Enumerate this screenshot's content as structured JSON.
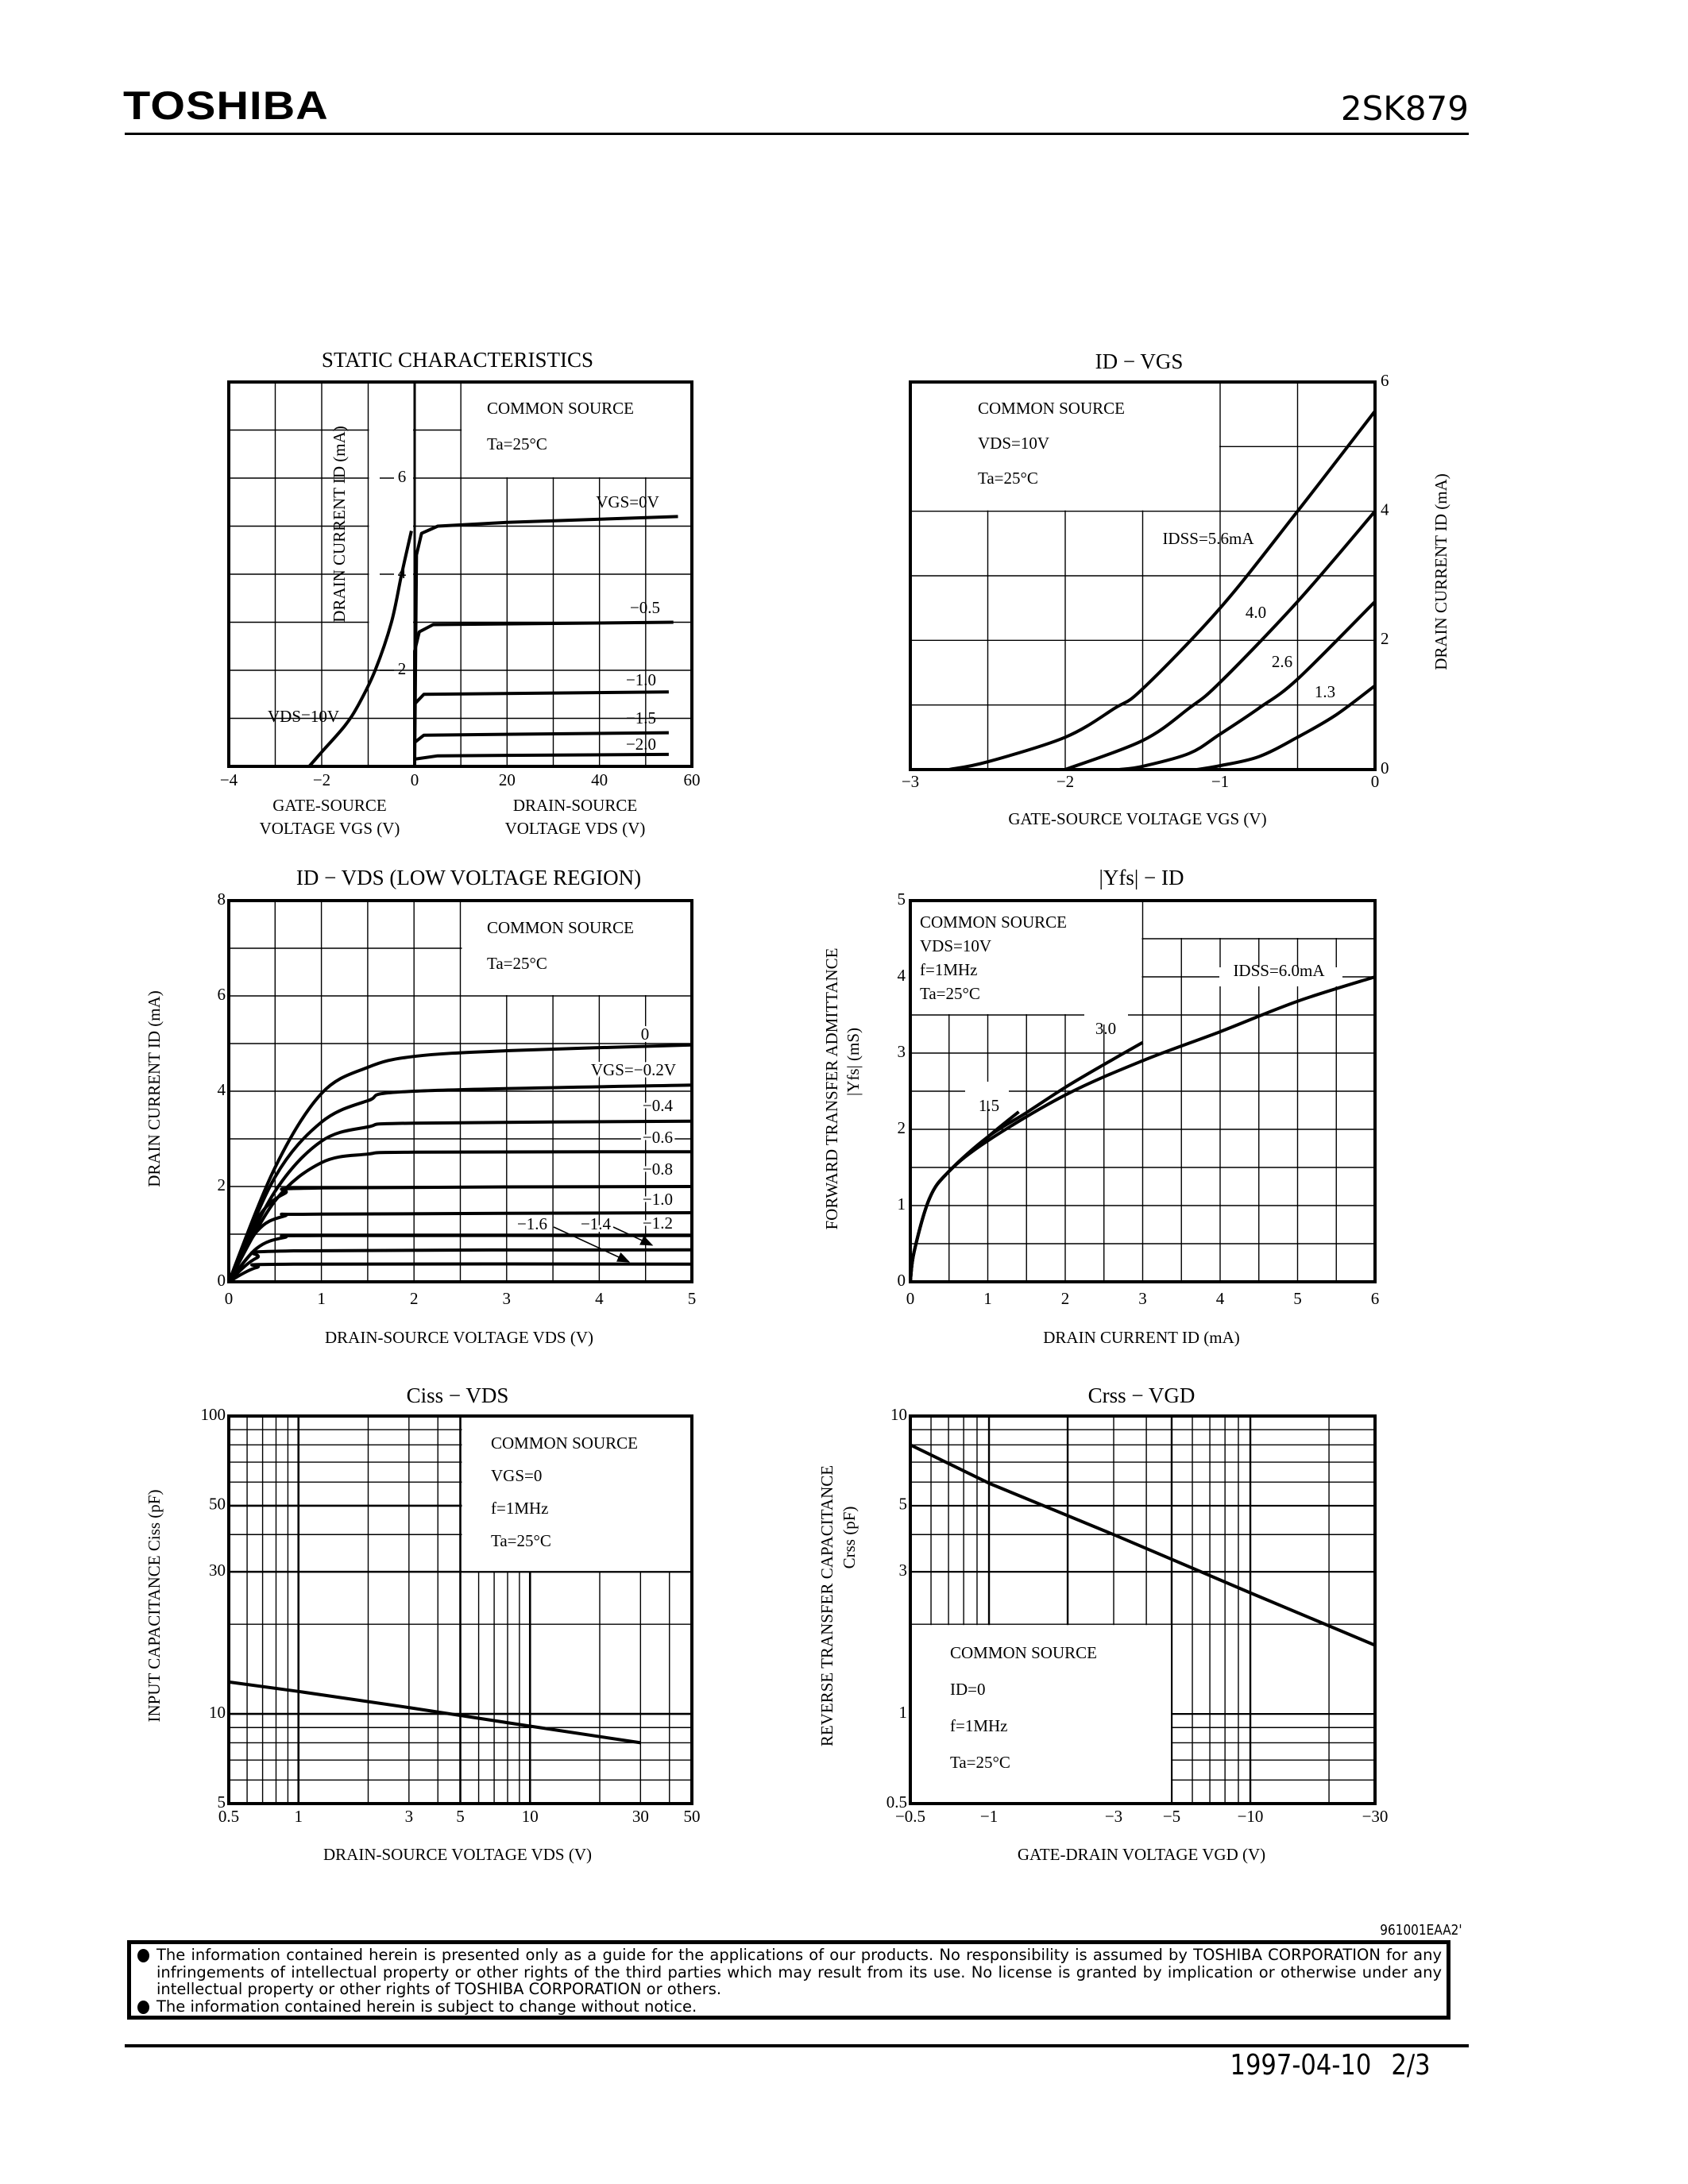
{
  "header": {
    "logo": "TOSHIBA",
    "part_number": "2SK879"
  },
  "chart_data": [
    {
      "type": "line",
      "title": "STATIC CHARACTERISTICS",
      "conditions": [
        "COMMON SOURCE",
        "Ta=25°C"
      ],
      "ylabel": "DRAIN CURRENT ID (mA)",
      "ylim": [
        0,
        8
      ],
      "yticks": [
        2,
        4,
        6
      ],
      "ytick_labels": [
        "2",
        "4",
        "6"
      ],
      "grid": true,
      "panels": [
        {
          "xlabel": [
            "GATE-SOURCE",
            "VOLTAGE VGS (V)"
          ],
          "xlim": [
            -4,
            0
          ],
          "xticks": [
            -4,
            -2,
            0
          ],
          "xtick_labels": [
            "−4",
            "−2",
            "0"
          ],
          "series": [
            {
              "name": "VDS=10V",
              "x": [
                -2.27,
                -2,
                -1.5,
                -1.2,
                -0.85,
                -0.5,
                -0.28,
                -0.07
              ],
              "y": [
                0,
                0.3,
                0.85,
                1.3,
                2.0,
                3.0,
                4.0,
                4.9
              ]
            }
          ]
        },
        {
          "xlabel": [
            "DRAIN-SOURCE",
            "VOLTAGE VDS (V)"
          ],
          "xlim": [
            0,
            60
          ],
          "xticks": [
            20,
            40,
            60
          ],
          "xtick_labels": [
            "20",
            "40",
            "60"
          ],
          "series": [
            {
              "name": "VGS=0V",
              "x": [
                0,
                0.4,
                1.5,
                5,
                20,
                57
              ],
              "y": [
                0,
                4.4,
                4.85,
                5.0,
                5.08,
                5.2
              ]
            },
            {
              "name": "−0.5",
              "x": [
                0,
                0,
                1,
                4,
                56
              ],
              "y": [
                0,
                2.4,
                2.8,
                2.95,
                3.0
              ]
            },
            {
              "name": "−1.0",
              "x": [
                0,
                0,
                2,
                55
              ],
              "y": [
                0,
                1.3,
                1.5,
                1.55
              ]
            },
            {
              "name": "−1.5",
              "x": [
                0,
                0,
                2,
                55
              ],
              "y": [
                0,
                0.5,
                0.65,
                0.7
              ]
            },
            {
              "name": "−2.0",
              "x": [
                0,
                0,
                5,
                55
              ],
              "y": [
                0,
                0.15,
                0.22,
                0.25
              ]
            }
          ]
        }
      ]
    },
    {
      "type": "line",
      "title": "ID − VGS",
      "conditions": [
        "COMMON SOURCE",
        "VDS=10V",
        "Ta=25°C"
      ],
      "xlabel": "GATE-SOURCE VOLTAGE VGS (V)",
      "ylabel": "DRAIN CURRENT ID (mA)",
      "xlim": [
        -3,
        0
      ],
      "ylim": [
        0,
        6
      ],
      "xticks": [
        -3,
        -2,
        -1,
        0
      ],
      "xtick_labels": [
        "−3",
        "−2",
        "−1",
        "0"
      ],
      "yticks": [
        0,
        2,
        4,
        6
      ],
      "ytick_labels": [
        "0",
        "2",
        "4",
        "6"
      ],
      "grid": true,
      "series": [
        {
          "name": "IDSS=5.6mA",
          "x": [
            -2.75,
            -2.5,
            -2,
            -1.68,
            -1.5,
            -1,
            -0.5,
            0
          ],
          "y": [
            0,
            0.12,
            0.5,
            0.95,
            1.25,
            2.5,
            4.0,
            5.55
          ]
        },
        {
          "name": "4.0",
          "x": [
            -2,
            -1.5,
            -1.2,
            -1,
            -0.5,
            0
          ],
          "y": [
            0,
            0.45,
            0.95,
            1.35,
            2.6,
            4.0
          ]
        },
        {
          "name": "2.6",
          "x": [
            -1.65,
            -1.5,
            -1.2,
            -1,
            -0.75,
            -0.5,
            0
          ],
          "y": [
            0,
            0.05,
            0.25,
            0.55,
            0.95,
            1.4,
            2.6
          ]
        },
        {
          "name": "1.3",
          "x": [
            -1.15,
            -1,
            -0.75,
            -0.5,
            -0.25,
            0
          ],
          "y": [
            0,
            0.06,
            0.2,
            0.5,
            0.85,
            1.3
          ]
        }
      ]
    },
    {
      "type": "line",
      "title": "ID − VDS (LOW VOLTAGE REGION)",
      "conditions": [
        "COMMON SOURCE",
        "Ta=25°C"
      ],
      "xlabel": "DRAIN-SOURCE VOLTAGE VDS (V)",
      "ylabel": "DRAIN CURRENT ID (mA)",
      "xlim": [
        0,
        5
      ],
      "ylim": [
        0,
        8
      ],
      "xticks": [
        0,
        1,
        2,
        3,
        4,
        5
      ],
      "xtick_labels": [
        "0",
        "1",
        "2",
        "3",
        "4",
        "5"
      ],
      "yticks": [
        0,
        2,
        4,
        6,
        8
      ],
      "ytick_labels": [
        "0",
        "2",
        "4",
        "6",
        "8"
      ],
      "grid": true,
      "series": [
        {
          "name": "0",
          "x": [
            0,
            0.5,
            1,
            1.5,
            2,
            3,
            5
          ],
          "y": [
            0,
            2.4,
            3.95,
            4.5,
            4.73,
            4.85,
            4.97
          ]
        },
        {
          "name": "VGS=−0.2V",
          "x": [
            0,
            0.5,
            1,
            1.5,
            2,
            5
          ],
          "y": [
            0,
            2.2,
            3.35,
            3.8,
            4.0,
            4.13
          ]
        },
        {
          "name": "−0.4",
          "x": [
            0,
            0.5,
            1,
            1.5,
            2,
            5
          ],
          "y": [
            0,
            1.9,
            2.95,
            3.25,
            3.33,
            3.37
          ]
        },
        {
          "name": "−0.6",
          "x": [
            0,
            0.5,
            1,
            1.5,
            2,
            5
          ],
          "y": [
            0,
            1.7,
            2.5,
            2.68,
            2.72,
            2.73
          ]
        },
        {
          "name": "−0.8",
          "x": [
            0,
            0.3,
            0.6,
            1,
            5
          ],
          "y": [
            0,
            1.3,
            1.85,
            1.97,
            2.0
          ]
        },
        {
          "name": "−1.0",
          "x": [
            0,
            0.3,
            0.6,
            1,
            5
          ],
          "y": [
            0,
            1.05,
            1.38,
            1.42,
            1.45
          ]
        },
        {
          "name": "−1.2",
          "x": [
            0,
            0.3,
            0.6,
            1,
            5
          ],
          "y": [
            0,
            0.7,
            0.93,
            0.97,
            0.97
          ]
        },
        {
          "name": "−1.4",
          "x": [
            0,
            0.3,
            0.7,
            5
          ],
          "y": [
            0,
            0.5,
            0.65,
            0.67
          ]
        },
        {
          "name": "−1.6",
          "x": [
            0,
            0.3,
            0.7,
            5
          ],
          "y": [
            0,
            0.3,
            0.37,
            0.37
          ]
        }
      ]
    },
    {
      "type": "line",
      "title": "|Yfs| − ID",
      "conditions": [
        "COMMON SOURCE",
        "VDS=10V",
        "f=1MHz",
        "Ta=25°C"
      ],
      "xlabel": "DRAIN CURRENT ID (mA)",
      "ylabel": [
        "FORWARD TRANSFER ADMITTANCE",
        "|Yfs|   (mS)"
      ],
      "xlim": [
        0,
        6
      ],
      "ylim": [
        0,
        5
      ],
      "xticks": [
        0,
        1,
        2,
        3,
        4,
        5,
        6
      ],
      "xtick_labels": [
        "0",
        "1",
        "2",
        "3",
        "4",
        "5",
        "6"
      ],
      "yticks": [
        0,
        1,
        2,
        3,
        4,
        5
      ],
      "ytick_labels": [
        "0",
        "1",
        "2",
        "3",
        "4",
        "5"
      ],
      "grid": true,
      "series": [
        {
          "name": "IDSS=6.0mA",
          "x": [
            0,
            0.05,
            0.25,
            0.5,
            1,
            2,
            3,
            4,
            5,
            6
          ],
          "y": [
            0,
            0.4,
            1.1,
            1.45,
            1.85,
            2.45,
            2.9,
            3.28,
            3.68,
            4.0
          ]
        },
        {
          "name": "3.0",
          "x": [
            0,
            0.05,
            0.25,
            0.5,
            1,
            1.5,
            2,
            2.5,
            3
          ],
          "y": [
            0,
            0.4,
            1.1,
            1.45,
            1.9,
            2.22,
            2.55,
            2.85,
            3.14
          ]
        },
        {
          "name": "1.5",
          "x": [
            0,
            0.05,
            0.25,
            0.5,
            1,
            1.4
          ],
          "y": [
            0,
            0.4,
            1.1,
            1.45,
            1.9,
            2.23
          ]
        }
      ]
    },
    {
      "type": "line",
      "title": "Ciss − VDS",
      "conditions": [
        "COMMON SOURCE",
        "VGS=0",
        "f=1MHz",
        "Ta=25°C"
      ],
      "xlabel": "DRAIN-SOURCE VOLTAGE VDS (V)",
      "ylabel": "INPUT CAPACITANCE Ciss (pF)",
      "xscale": "log",
      "yscale": "log",
      "xlim": [
        0.5,
        50
      ],
      "ylim": [
        5,
        100
      ],
      "xticks": [
        0.5,
        1,
        3,
        5,
        10,
        30,
        50
      ],
      "xtick_labels": [
        "0.5",
        "1",
        "3",
        "5",
        "10",
        "30",
        "50"
      ],
      "yticks": [
        5,
        10,
        30,
        50,
        100
      ],
      "ytick_labels": [
        "5",
        "10",
        "30",
        "50",
        "100"
      ],
      "grid": true,
      "series": [
        {
          "x": [
            0.5,
            1,
            3,
            10,
            30
          ],
          "y": [
            12.8,
            11.9,
            10.5,
            9.1,
            8.0
          ]
        }
      ]
    },
    {
      "type": "line",
      "title": "Crss − VGD",
      "conditions": [
        "COMMON SOURCE",
        "ID=0",
        "f=1MHz",
        "Ta=25°C"
      ],
      "xlabel": "GATE-DRAIN VOLTAGE VGD (V)",
      "ylabel": [
        "REVERSE TRANSFER CAPACITANCE",
        "Crss   (pF)"
      ],
      "xscale": "log",
      "yscale": "log",
      "xlim": [
        -0.5,
        -30
      ],
      "ylim": [
        0.5,
        10
      ],
      "xticks": [
        -0.5,
        -1,
        -3,
        -5,
        -10,
        -30
      ],
      "xtick_labels": [
        "−0.5",
        "−1",
        "−3",
        "−5",
        "−10",
        "−30"
      ],
      "yticks": [
        0.5,
        1,
        3,
        5,
        10
      ],
      "ytick_labels": [
        "0.5",
        "1",
        "3",
        "5",
        "10"
      ],
      "grid": true,
      "series": [
        {
          "x": [
            -0.5,
            -1,
            -3,
            -10,
            -30
          ],
          "y": [
            8.0,
            5.95,
            4.0,
            2.55,
            1.7
          ]
        }
      ]
    }
  ],
  "footer": {
    "doc_code": "961001EAA2'",
    "notices": [
      "The information contained herein is presented only as a guide for the applications of our products. No responsibility is assumed by TOSHIBA CORPORATION for any infringements of intellectual property or other rights of the third parties which may result from its use. No license is granted by implication or otherwise under any intellectual property or other rights of TOSHIBA CORPORATION or others.",
      "The information contained herein is subject to change without notice."
    ],
    "date": "1997-04-10",
    "page": "2/3"
  }
}
